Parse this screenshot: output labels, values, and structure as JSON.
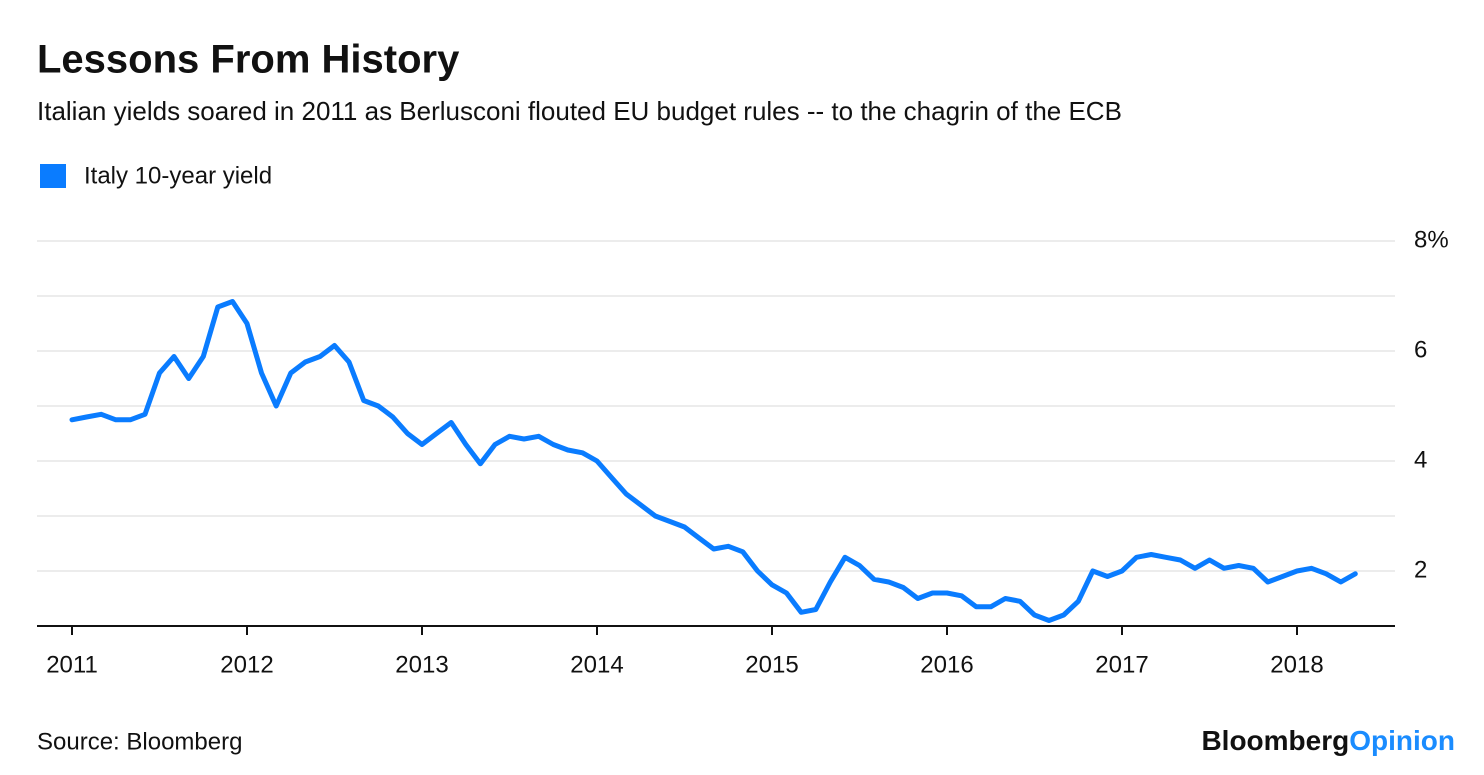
{
  "chart_data": {
    "type": "line",
    "title": "Lessons From History",
    "subtitle": "Italian yields soared in 2011 as Berlusconi flouted EU budget rules -- to the chagrin of the ECB",
    "source": "Source: Bloomberg",
    "brand": "Bloomberg",
    "brand_suffix": "Opinion",
    "x": [
      2011,
      2011.083,
      2011.167,
      2011.25,
      2011.333,
      2011.417,
      2011.5,
      2011.583,
      2011.667,
      2011.75,
      2011.833,
      2011.917,
      2012,
      2012.083,
      2012.167,
      2012.25,
      2012.333,
      2012.417,
      2012.5,
      2012.583,
      2012.667,
      2012.75,
      2012.833,
      2012.917,
      2013,
      2013.083,
      2013.167,
      2013.25,
      2013.333,
      2013.417,
      2013.5,
      2013.583,
      2013.667,
      2013.75,
      2013.833,
      2013.917,
      2014,
      2014.083,
      2014.167,
      2014.25,
      2014.333,
      2014.417,
      2014.5,
      2014.583,
      2014.667,
      2014.75,
      2014.833,
      2014.917,
      2015,
      2015.083,
      2015.167,
      2015.25,
      2015.333,
      2015.417,
      2015.5,
      2015.583,
      2015.667,
      2015.75,
      2015.833,
      2015.917,
      2016,
      2016.083,
      2016.167,
      2016.25,
      2016.333,
      2016.417,
      2016.5,
      2016.583,
      2016.667,
      2016.75,
      2016.833,
      2016.917,
      2017,
      2017.083,
      2017.167,
      2017.25,
      2017.333,
      2017.417,
      2017.5,
      2017.583,
      2017.667,
      2017.75,
      2017.833,
      2017.917,
      2018,
      2018.083,
      2018.167,
      2018.25,
      2018.333
    ],
    "series": [
      {
        "name": "Italy 10-year yield",
        "color": "#0a7cff",
        "values": [
          4.75,
          4.8,
          4.85,
          4.75,
          4.75,
          4.85,
          5.6,
          5.9,
          5.5,
          5.9,
          6.8,
          6.9,
          6.5,
          5.6,
          5.0,
          5.6,
          5.8,
          5.9,
          6.1,
          5.8,
          5.1,
          5.0,
          4.8,
          4.5,
          4.3,
          4.5,
          4.7,
          4.3,
          3.95,
          4.3,
          4.45,
          4.4,
          4.45,
          4.3,
          4.2,
          4.15,
          4.0,
          3.7,
          3.4,
          3.2,
          3.0,
          2.9,
          2.8,
          2.6,
          2.4,
          2.45,
          2.35,
          2.0,
          1.75,
          1.6,
          1.25,
          1.3,
          1.8,
          2.25,
          2.1,
          1.85,
          1.8,
          1.7,
          1.5,
          1.6,
          1.6,
          1.55,
          1.35,
          1.35,
          1.5,
          1.45,
          1.2,
          1.1,
          1.2,
          1.45,
          2.0,
          1.9,
          2.0,
          2.25,
          2.3,
          2.25,
          2.2,
          2.05,
          2.2,
          2.05,
          2.1,
          2.05,
          1.8,
          1.9,
          2.0,
          2.05,
          1.95,
          1.8,
          1.95
        ]
      }
    ],
    "xlim": [
      2010.8,
      2018.56
    ],
    "xticks": [
      2011,
      2012,
      2013,
      2014,
      2015,
      2016,
      2017,
      2018
    ],
    "ylim": [
      1,
      8
    ],
    "yticks": [
      2,
      {
        "value": 4,
        "label": "4"
      },
      6,
      {
        "value": 8,
        "label": "8%"
      }
    ],
    "ygrid": [
      2,
      3,
      4,
      5,
      6,
      7,
      8
    ]
  }
}
